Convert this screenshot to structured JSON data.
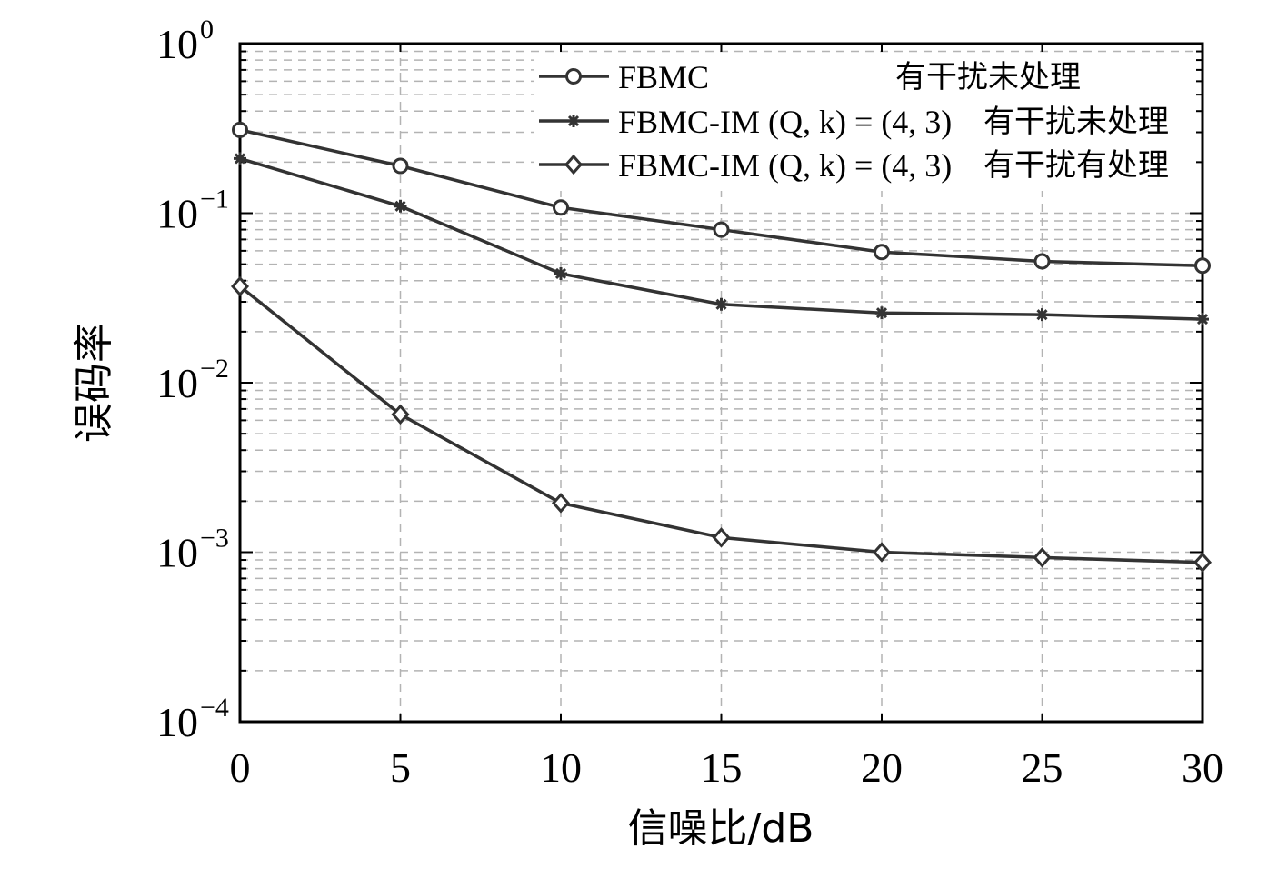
{
  "chart_data": {
    "type": "line",
    "xlabel": "信噪比/dB",
    "ylabel": "误码率",
    "x": [
      0,
      5,
      10,
      15,
      20,
      25,
      30
    ],
    "xlim": [
      0,
      30
    ],
    "ylim": [
      0.0001,
      1
    ],
    "yscale": "log",
    "grid": true,
    "legend_position": "top-right",
    "x_ticks": [
      "0",
      "5",
      "10",
      "15",
      "20",
      "25",
      "30"
    ],
    "y_ticks": [
      {
        "base": "10",
        "exp": "0"
      },
      {
        "base": "10",
        "exp": "−1"
      },
      {
        "base": "10",
        "exp": "−2"
      },
      {
        "base": "10",
        "exp": "−3"
      },
      {
        "base": "10",
        "exp": "−4"
      }
    ],
    "series": [
      {
        "name_main": "FBMC",
        "name_tail": "有干扰未处理",
        "marker": "circle",
        "values": [
          0.31,
          0.19,
          0.108,
          0.08,
          0.059,
          0.052,
          0.049
        ]
      },
      {
        "name_main": "FBMC-IM (Q, k) = (4, 3)",
        "name_tail": "有干扰未处理",
        "marker": "star",
        "values": [
          0.21,
          0.11,
          0.044,
          0.029,
          0.0258,
          0.0252,
          0.0237
        ]
      },
      {
        "name_main": "FBMC-IM (Q, k) = (4, 3)",
        "name_tail": "有干扰有处理",
        "marker": "diamond",
        "values": [
          0.037,
          0.0065,
          0.00195,
          0.00122,
          0.001,
          0.00093,
          0.00087
        ]
      }
    ],
    "line_color": "#333333"
  }
}
